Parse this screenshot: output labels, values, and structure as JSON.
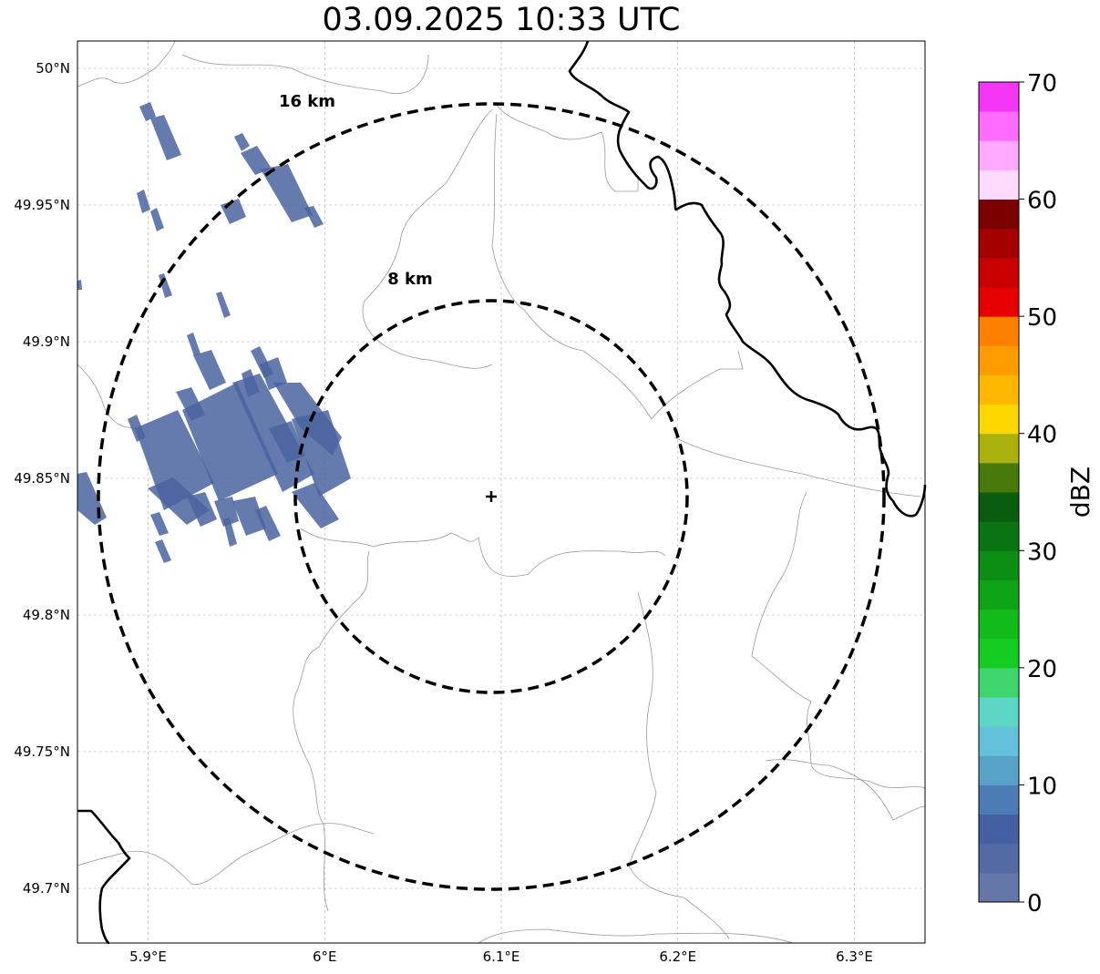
{
  "title": "03.09.2025 10:33 UTC",
  "map": {
    "lon_range": [
      5.86,
      6.34
    ],
    "lat_range": [
      49.68,
      50.01
    ],
    "lat_ticks": [
      {
        "value": 50.0,
        "label": "50°N"
      },
      {
        "value": 49.95,
        "label": "49.95°N"
      },
      {
        "value": 49.9,
        "label": "49.9°N"
      },
      {
        "value": 49.85,
        "label": "49.85°N"
      },
      {
        "value": 49.8,
        "label": "49.8°N"
      },
      {
        "value": 49.75,
        "label": "49.75°N"
      },
      {
        "value": 49.7,
        "label": "49.7°N"
      }
    ],
    "lon_ticks": [
      {
        "value": 5.9,
        "label": "5.9°E"
      },
      {
        "value": 6.0,
        "label": "6°E"
      },
      {
        "value": 6.1,
        "label": "6.1°E"
      },
      {
        "value": 6.2,
        "label": "6.2°E"
      },
      {
        "value": 6.3,
        "label": "6.3°E"
      }
    ],
    "radar_site": {
      "lon": 6.095,
      "lat": 49.843
    },
    "range_rings": [
      {
        "label": "8 km",
        "radius_km": 8
      },
      {
        "label": "16 km",
        "radius_km": 16
      }
    ],
    "echo_color": "#4a64a0"
  },
  "colorbar": {
    "label": "dBZ",
    "ticks": [
      "0",
      "10",
      "20",
      "30",
      "40",
      "50",
      "60",
      "70"
    ],
    "colors": [
      "#6577a7",
      "#536aa5",
      "#4560a2",
      "#4d7cb5",
      "#58a2c8",
      "#63c2da",
      "#5dd6c5",
      "#3ed56f",
      "#14cc22",
      "#10bb1a",
      "#0ea416",
      "#0c8d14",
      "#0b7412",
      "#0a5d0f",
      "#477a0a",
      "#aab00c",
      "#ffd700",
      "#ffb700",
      "#ff9c00",
      "#ff7f00",
      "#e60000",
      "#c80000",
      "#a50000",
      "#7d0000",
      "#ffdaff",
      "#ffaaff",
      "#ff6cff",
      "#f535f5"
    ]
  }
}
